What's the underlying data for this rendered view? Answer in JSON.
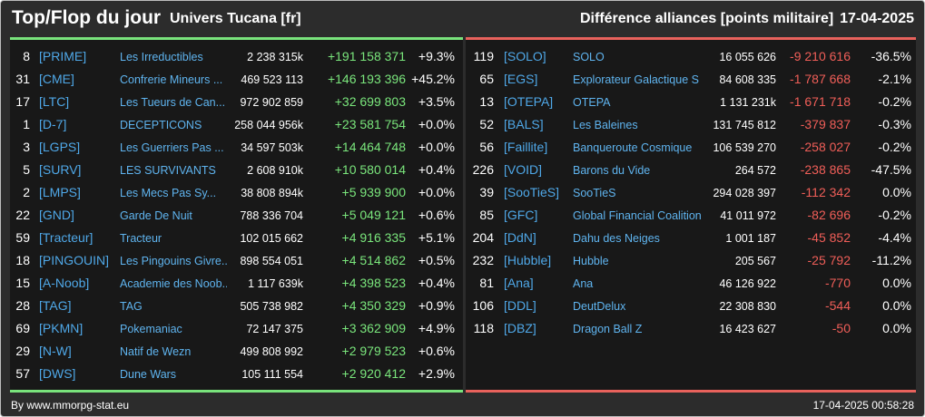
{
  "header": {
    "title": "Top/Flop du jour",
    "universe": "Univers Tucana [fr]",
    "difference_title": "Différence alliances [points militaire]",
    "date": "17-04-2025"
  },
  "colors": {
    "background": "#2c2c2c",
    "panel": "#181818",
    "top_accent": "#79e37c",
    "flop_accent": "#e8625c",
    "link": "#4fa8e8"
  },
  "top": [
    {
      "rank": "8",
      "tag": "[PRIME]",
      "name": "Les Irreductibles",
      "points": "2 238 315k",
      "diff": "+191 158 371",
      "pct": "+9.3%"
    },
    {
      "rank": "31",
      "tag": "[CME]",
      "name": "Confrerie Mineurs ...",
      "points": "469 523 113",
      "diff": "+146 193 396",
      "pct": "+45.2%"
    },
    {
      "rank": "17",
      "tag": "[LTC]",
      "name": "Les Tueurs de Can...",
      "points": "972 902 859",
      "diff": "+32 699 803",
      "pct": "+3.5%"
    },
    {
      "rank": "1",
      "tag": "[D-7]",
      "name": "DECEPTICONS",
      "points": "258 044 956k",
      "diff": "+23 581 754",
      "pct": "+0.0%"
    },
    {
      "rank": "3",
      "tag": "[LGPS]",
      "name": "Les Guerriers Pas ...",
      "points": "34 597 503k",
      "diff": "+14 464 748",
      "pct": "+0.0%"
    },
    {
      "rank": "5",
      "tag": "[SURV]",
      "name": "LES SURVIVANTS",
      "points": "2 608 910k",
      "diff": "+10 580 014",
      "pct": "+0.4%"
    },
    {
      "rank": "2",
      "tag": "[LMPS]",
      "name": "Les Mecs Pas Sy...",
      "points": "38 808 894k",
      "diff": "+5 939 900",
      "pct": "+0.0%"
    },
    {
      "rank": "22",
      "tag": "[GND]",
      "name": "Garde De Nuit",
      "points": "788 336 704",
      "diff": "+5 049 121",
      "pct": "+0.6%"
    },
    {
      "rank": "59",
      "tag": "[Tracteur]",
      "name": "Tracteur",
      "points": "102 015 662",
      "diff": "+4 916 335",
      "pct": "+5.1%"
    },
    {
      "rank": "18",
      "tag": "[PINGOUIN]",
      "name": "Les Pingouins Givre...",
      "points": "898 554 051",
      "diff": "+4 514 862",
      "pct": "+0.5%"
    },
    {
      "rank": "15",
      "tag": "[A-Noob]",
      "name": "Academie des Noob...",
      "points": "1 117 639k",
      "diff": "+4 398 523",
      "pct": "+0.4%"
    },
    {
      "rank": "28",
      "tag": "[TAG]",
      "name": "TAG",
      "points": "505 738 982",
      "diff": "+4 350 329",
      "pct": "+0.9%"
    },
    {
      "rank": "69",
      "tag": "[PKMN]",
      "name": "Pokemaniac",
      "points": "72 147 375",
      "diff": "+3 362 909",
      "pct": "+4.9%"
    },
    {
      "rank": "29",
      "tag": "[N-W]",
      "name": "Natif de Wezn",
      "points": "499 808 992",
      "diff": "+2 979 523",
      "pct": "+0.6%"
    },
    {
      "rank": "57",
      "tag": "[DWS]",
      "name": "Dune Wars",
      "points": "105 111 554",
      "diff": "+2 920 412",
      "pct": "+2.9%"
    }
  ],
  "flop": [
    {
      "rank": "119",
      "tag": "[SOLO]",
      "name": "SOLO",
      "points": "16 055 626",
      "diff": "-9 210 616",
      "pct": "-36.5%"
    },
    {
      "rank": "65",
      "tag": "[EGS]",
      "name": "Explorateur Galactique S",
      "points": "84 608 335",
      "diff": "-1 787 668",
      "pct": "-2.1%"
    },
    {
      "rank": "13",
      "tag": "[OTEPA]",
      "name": "OTEPA",
      "points": "1 131 231k",
      "diff": "-1 671 718",
      "pct": "-0.2%"
    },
    {
      "rank": "52",
      "tag": "[BALS]",
      "name": "Les Baleines",
      "points": "131 745 812",
      "diff": "-379 837",
      "pct": "-0.3%"
    },
    {
      "rank": "56",
      "tag": "[Faillite]",
      "name": "Banqueroute Cosmique",
      "points": "106 539 270",
      "diff": "-258 027",
      "pct": "-0.2%"
    },
    {
      "rank": "226",
      "tag": "[VOID]",
      "name": "Barons du Vide",
      "points": "264 572",
      "diff": "-238 865",
      "pct": "-47.5%"
    },
    {
      "rank": "39",
      "tag": "[SooTieS]",
      "name": "SooTieS",
      "points": "294 028 397",
      "diff": "-112 342",
      "pct": "0.0%"
    },
    {
      "rank": "85",
      "tag": "[GFC]",
      "name": "Global Financial Coalition",
      "points": "41 011 972",
      "diff": "-82 696",
      "pct": "-0.2%"
    },
    {
      "rank": "204",
      "tag": "[DdN]",
      "name": "Dahu des Neiges",
      "points": "1 001 187",
      "diff": "-45 852",
      "pct": "-4.4%"
    },
    {
      "rank": "232",
      "tag": "[Hubble]",
      "name": "Hubble",
      "points": "205 567",
      "diff": "-25 792",
      "pct": "-11.2%"
    },
    {
      "rank": "81",
      "tag": "[Ana]",
      "name": "Ana",
      "points": "46 126 922",
      "diff": "-770",
      "pct": "0.0%"
    },
    {
      "rank": "106",
      "tag": "[DDL]",
      "name": "DeutDelux",
      "points": "22 308 830",
      "diff": "-544",
      "pct": "0.0%"
    },
    {
      "rank": "118",
      "tag": "[DBZ]",
      "name": "Dragon Ball Z",
      "points": "16 423 627",
      "diff": "-50",
      "pct": "0.0%"
    }
  ],
  "footer": {
    "source": "By www.mmorpg-stat.eu",
    "timestamp": "17-04-2025 00:58:28"
  }
}
